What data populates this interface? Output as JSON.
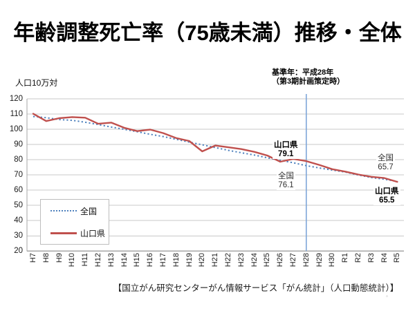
{
  "title": "年齢調整死亡率（75歳未満）推移・全体",
  "y_axis_unit": "人口10万対",
  "annotations": {
    "base_year_line1": "基準年：平成28年",
    "base_year_line2": "（第3期計画策定時）",
    "yamaguchi_h28_label": "山口県",
    "yamaguchi_h28_value": "79.1",
    "zenkoku_h28_label": "全国",
    "zenkoku_h28_value": "76.1",
    "zenkoku_r5_label": "全国",
    "zenkoku_r5_value": "65.7",
    "yamaguchi_r5_label": "山口県",
    "yamaguchi_r5_value": "65.5"
  },
  "legend": [
    {
      "label": "全国",
      "style": "dotted",
      "color": "#4E81BD"
    },
    {
      "label": "山口県",
      "style": "solid",
      "color": "#C0504D"
    }
  ],
  "source": "【国立がん研究センターがん情報サービス「がん統計」（人口動態統計）】",
  "page_mark": "◦",
  "colors": {
    "national_line": "#4E81BD",
    "yamaguchi_line": "#C0504D",
    "reference_line": "#7EA6D9",
    "gridline": "#c8c8c8",
    "axis": "#a6a6a6"
  },
  "chart_data": {
    "type": "line",
    "title": "年齢調整死亡率（75歳未満）推移・全体",
    "ylabel": "人口10万対",
    "ylim": [
      20,
      120
    ],
    "ytick_step": 10,
    "grid": true,
    "legend_position": "lower-left-inside",
    "reference_line_x": "H28",
    "categories": [
      "H7",
      "H8",
      "H9",
      "H10",
      "H11",
      "H12",
      "H13",
      "H14",
      "H15",
      "H16",
      "H17",
      "H18",
      "H19",
      "H20",
      "H21",
      "H22",
      "H23",
      "H24",
      "H25",
      "H26",
      "H27",
      "H28",
      "H29",
      "H30",
      "R1",
      "R2",
      "R3",
      "R4",
      "R5"
    ],
    "series": [
      {
        "name": "全国",
        "style": "dotted",
        "color": "#4E81BD",
        "values": [
          108.4,
          107.6,
          106.4,
          105.9,
          104.6,
          103.1,
          101.5,
          100.0,
          98.4,
          96.7,
          95.2,
          93.4,
          91.6,
          89.8,
          88.0,
          86.2,
          84.6,
          83.1,
          81.3,
          79.6,
          78.0,
          76.1,
          74.6,
          73.2,
          71.9,
          70.0,
          68.3,
          67.2,
          65.7
        ]
      },
      {
        "name": "山口県",
        "style": "solid",
        "color": "#C0504D",
        "values": [
          110.2,
          105.4,
          107.3,
          108.0,
          107.6,
          103.6,
          104.4,
          101.0,
          98.8,
          99.8,
          97.5,
          94.2,
          92.3,
          85.5,
          89.3,
          88.2,
          87.0,
          85.2,
          82.8,
          78.7,
          80.5,
          79.1,
          76.6,
          73.8,
          72.2,
          70.3,
          68.8,
          68.0,
          65.5
        ]
      }
    ]
  }
}
